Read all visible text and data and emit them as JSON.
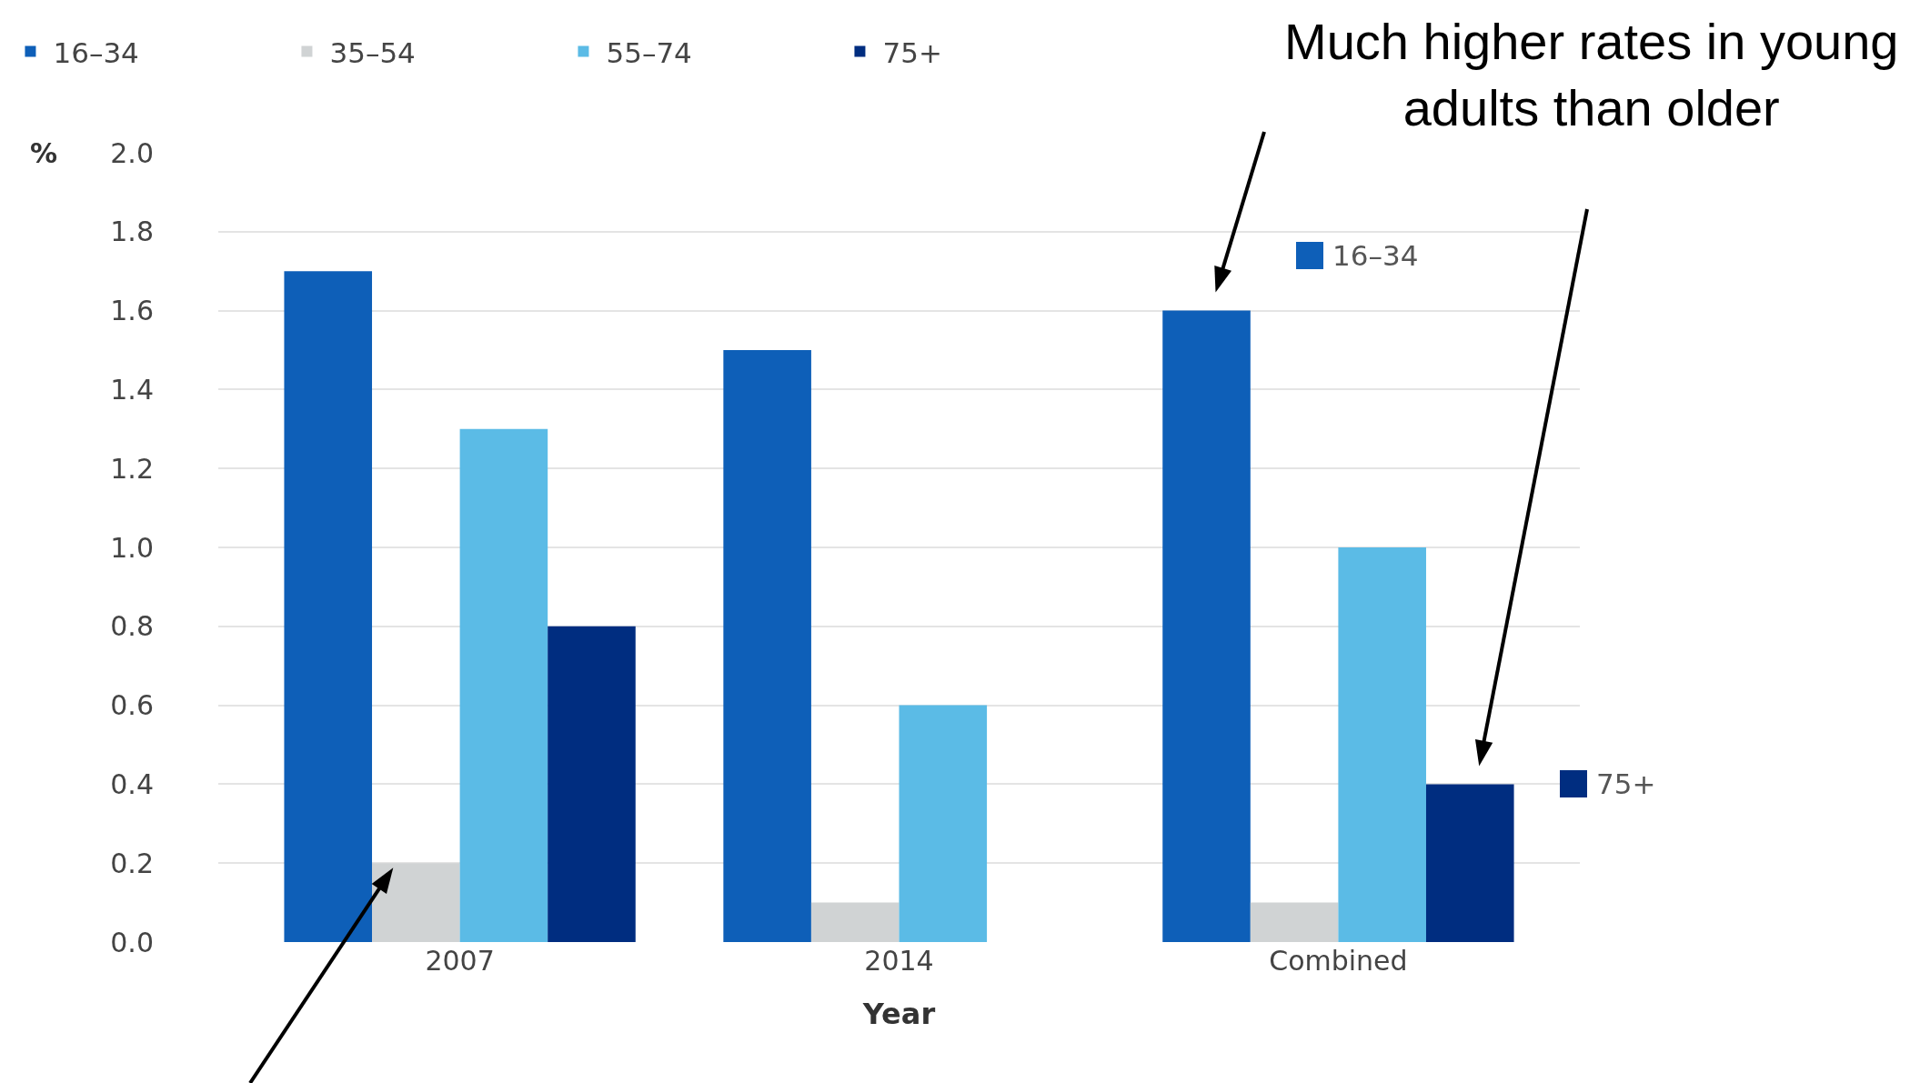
{
  "chart_data": {
    "type": "bar",
    "xlabel": "Year",
    "ylabel": "%",
    "categories": [
      "2007",
      "2014",
      "Combined"
    ],
    "series": [
      {
        "name": "16–34",
        "color": "#0e5fb8",
        "values": [
          1.7,
          1.5,
          1.6
        ]
      },
      {
        "name": "35–54",
        "color": "#d0d3d4",
        "values": [
          0.2,
          0.1,
          0.1
        ]
      },
      {
        "name": "55–74",
        "color": "#5bbbe6",
        "values": [
          1.3,
          0.6,
          1.0
        ]
      },
      {
        "name": "75+",
        "color": "#002d80",
        "values": [
          0.8,
          null,
          0.4
        ]
      }
    ],
    "ylim": [
      0,
      2
    ],
    "yticks": [
      {
        "value": 0,
        "label": "0.0"
      },
      {
        "value": 0.2,
        "label": "0.2"
      },
      {
        "value": 0.4,
        "label": "0.4"
      },
      {
        "value": 0.6,
        "label": "0.6"
      },
      {
        "value": 0.8,
        "label": "0.8"
      },
      {
        "value": 1,
        "label": "1.0"
      },
      {
        "value": 1.2,
        "label": "1.2"
      },
      {
        "value": 1.4,
        "label": "1.4"
      },
      {
        "value": 1.6,
        "label": "1.6"
      },
      {
        "value": 1.8,
        "label": "1.8"
      },
      {
        "value": 2,
        "label": "2.0"
      }
    ],
    "grid": "y",
    "legend": "top left",
    "annotations": [
      "Much higher rates in young adults than older",
      "16–34",
      "75+"
    ]
  }
}
